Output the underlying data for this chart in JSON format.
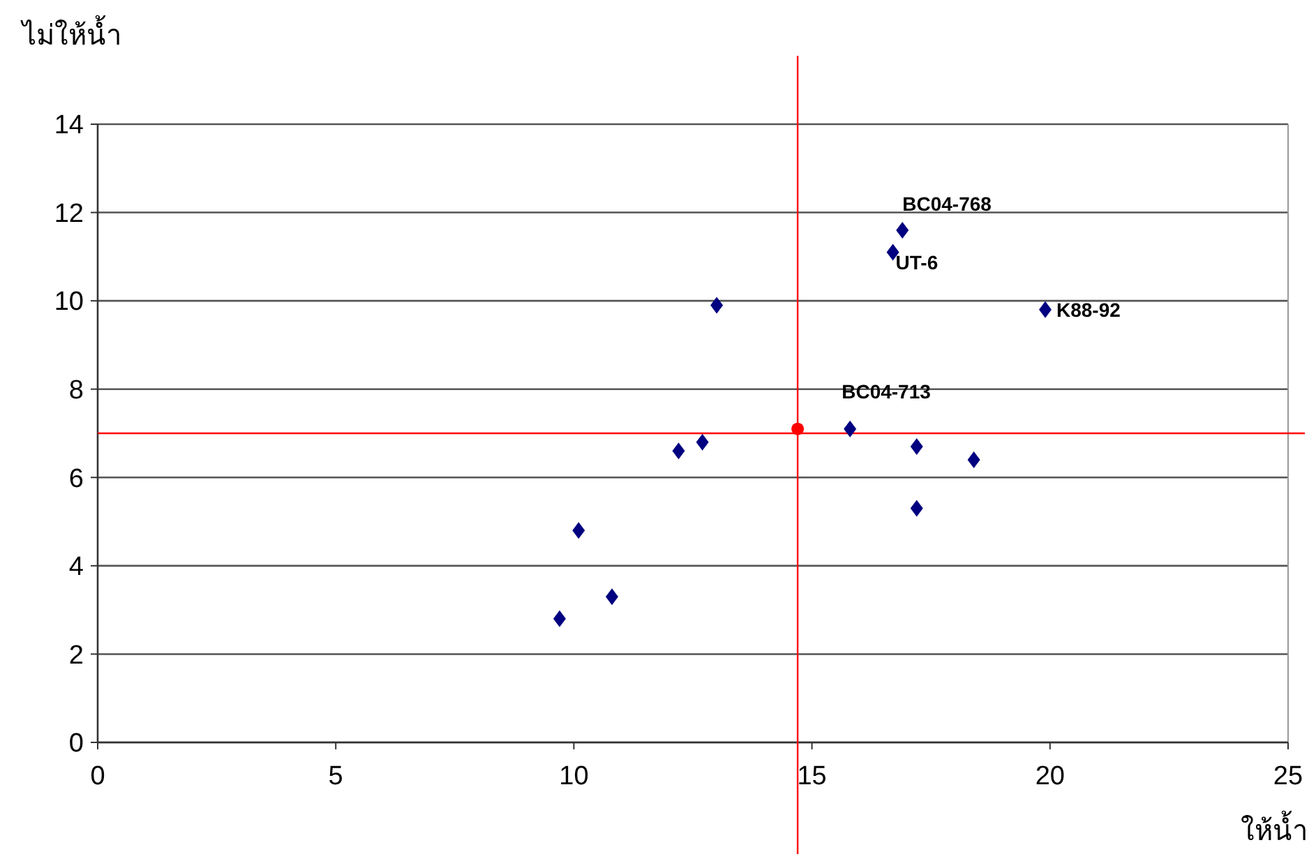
{
  "chart_data": {
    "type": "scatter",
    "xlabel": "ให้น้ำ",
    "ylabel": "ไม่ให้น้ำ",
    "xlim": [
      0,
      25
    ],
    "xticks": [
      0,
      5,
      10,
      15,
      20,
      25
    ],
    "ylim": [
      0,
      14
    ],
    "yticks": [
      0,
      2,
      4,
      6,
      8,
      10,
      12,
      14
    ],
    "grid": "y",
    "marker": "diamond",
    "series": [
      {
        "color": "#000080",
        "x": [
          9.7,
          10.1,
          10.8,
          12.2,
          12.7,
          13.0,
          15.8,
          16.9,
          16.7,
          19.9,
          17.2,
          18.4,
          17.2
        ],
        "values": [
          2.8,
          4.8,
          3.3,
          6.6,
          6.8,
          9.9,
          7.1,
          11.6,
          11.1,
          9.8,
          6.7,
          6.4,
          5.3
        ]
      },
      {
        "color": "#ff0000",
        "marker": "circle",
        "x": [
          14.7
        ],
        "values": [
          7.1
        ]
      }
    ],
    "ref_lines": [
      {
        "axis": "x",
        "value": 14.7,
        "color": "#ff0000"
      },
      {
        "axis": "y",
        "value": 7.0,
        "color": "#ff0000"
      }
    ],
    "annotations": [
      {
        "text": "BC04-768",
        "x": 16.9,
        "y": 11.6
      },
      {
        "text": "UT-6",
        "x": 16.7,
        "y": 11.1
      },
      {
        "text": "K88-92",
        "x": 19.9,
        "y": 9.8
      },
      {
        "text": "BC04-713",
        "x": 15.8,
        "y": 7.1
      }
    ]
  }
}
